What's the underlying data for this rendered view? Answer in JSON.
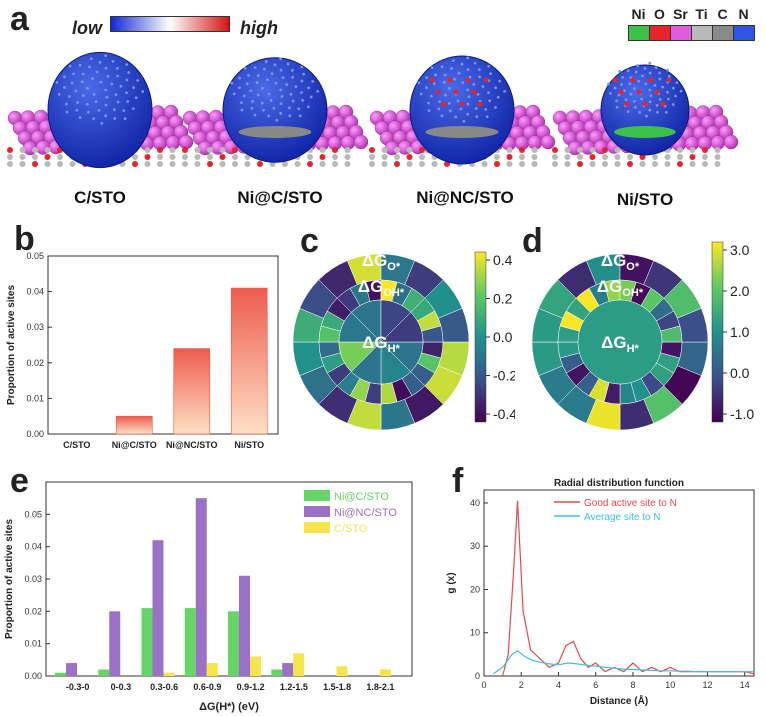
{
  "panels": {
    "a": "a",
    "b": "b",
    "c": "c",
    "d": "d",
    "e": "e",
    "f": "f"
  },
  "colorbar_a": {
    "low": "low",
    "high": "high"
  },
  "element_legend": [
    {
      "sym": "Ni",
      "color": "#3cc24a"
    },
    {
      "sym": "O",
      "color": "#e8232a"
    },
    {
      "sym": "Sr",
      "color": "#e05be0"
    },
    {
      "sym": "Ti",
      "color": "#b9b9b9"
    },
    {
      "sym": "C",
      "color": "#8a8a8a"
    },
    {
      "sym": "N",
      "color": "#2f56e0"
    }
  ],
  "structures": [
    {
      "label": "C/STO"
    },
    {
      "label": "Ni@C/STO"
    },
    {
      "label": "Ni@NC/STO"
    },
    {
      "label": "Ni/STO"
    }
  ],
  "rings_c": {
    "outer": "ΔG",
    "outer_sub": "O*",
    "middle": "ΔG",
    "middle_sub": "OH*",
    "inner": "ΔG",
    "inner_sub": "H*",
    "ticks": [
      "0.4",
      "0.2",
      "0.0",
      "-0.2",
      "-0.4"
    ]
  },
  "rings_d": {
    "outer": "ΔG",
    "outer_sub": "O*",
    "middle": "ΔG",
    "middle_sub": "OH*",
    "inner": "ΔG",
    "inner_sub": "H*",
    "ticks": [
      "3.0",
      "2.0",
      "1.0",
      "0.0",
      "-1.0"
    ]
  },
  "chart_data": [
    {
      "id": "b",
      "type": "bar",
      "ylabel": "Proportion of active sites",
      "categories": [
        "C/STO",
        "Ni@C/STO",
        "Ni@NC/STO",
        "Ni/STO"
      ],
      "values": [
        0.0,
        0.005,
        0.024,
        0.041
      ],
      "ylim": [
        0,
        0.05
      ],
      "yticks": [
        "0.00",
        "0.01",
        "0.02",
        "0.03",
        "0.04",
        "0.05"
      ]
    },
    {
      "id": "e",
      "type": "bar",
      "xlabel": "ΔG(H*) (eV)",
      "ylabel": "Proportion of active sites",
      "categories": [
        "-0.3-0",
        "0-0.3",
        "0.3-0.6",
        "0.6-0.9",
        "0.9-1.2",
        "1.2-1.5",
        "1.5-1.8",
        "1.8-2.1"
      ],
      "ylim": [
        0,
        0.06
      ],
      "yticks": [
        "0.00",
        "0.01",
        "0.02",
        "0.03",
        "0.04",
        "0.05"
      ],
      "series": [
        {
          "name": "Ni@C/STO",
          "color": "#66d466",
          "values": [
            0.001,
            0.002,
            0.021,
            0.021,
            0.02,
            0.002,
            0,
            0
          ]
        },
        {
          "name": "Ni@NC/STO",
          "color": "#9b70c7",
          "values": [
            0.004,
            0.02,
            0.042,
            0.055,
            0.031,
            0.004,
            0,
            0
          ]
        },
        {
          "name": "C/STO",
          "color": "#f6e44c",
          "values": [
            0,
            0,
            0.001,
            0.004,
            0.006,
            0.007,
            0.003,
            0.002
          ]
        }
      ]
    },
    {
      "id": "f",
      "type": "line",
      "title": "Radial distribution function",
      "xlabel": "Distance (Å)",
      "ylabel": "g (x)",
      "xlim": [
        0,
        14.5
      ],
      "ylim": [
        0,
        43
      ],
      "xticks": [
        "0",
        "2",
        "4",
        "6",
        "8",
        "10",
        "12",
        "14"
      ],
      "yticks": [
        "0",
        "10",
        "20",
        "30",
        "40"
      ],
      "series": [
        {
          "name": "Good active site to N",
          "color": "#e8484a",
          "x": [
            1.0,
            1.3,
            1.6,
            1.8,
            2.1,
            2.5,
            3.0,
            3.5,
            4.0,
            4.4,
            4.8,
            5.2,
            5.6,
            6.0,
            6.5,
            7.0,
            7.5,
            8.0,
            8.5,
            9.0,
            9.5,
            10.0,
            10.5,
            11.0,
            11.5,
            12.0,
            12.5,
            13.0,
            13.5,
            14.0,
            14.5
          ],
          "y": [
            0,
            5,
            25,
            40.5,
            15,
            6,
            4,
            2,
            3,
            7,
            8,
            4,
            2,
            3,
            1,
            2,
            1,
            3,
            1,
            2,
            1,
            2,
            1,
            1,
            1,
            1,
            1,
            1,
            1,
            1,
            0.5
          ]
        },
        {
          "name": "Average site to N",
          "color": "#3cc3dc",
          "x": [
            0.5,
            1.0,
            1.5,
            1.8,
            2.2,
            2.6,
            3.0,
            3.5,
            4.0,
            4.5,
            5.0,
            5.5,
            6.0,
            6.5,
            7.0,
            7.5,
            8.0,
            8.5,
            9.0,
            9.5,
            10.0,
            10.5,
            11.0,
            11.5,
            12.0,
            12.5,
            13.0,
            13.5,
            14.0,
            14.5
          ],
          "y": [
            0.5,
            2,
            5,
            5.8,
            4.5,
            3.6,
            3.2,
            2.8,
            2.6,
            3.0,
            2.8,
            2.5,
            2.3,
            2.0,
            1.8,
            1.6,
            1.5,
            1.4,
            1.3,
            1.2,
            1.2,
            1.1,
            1.1,
            1.0,
            1.0,
            1.0,
            1.0,
            1.0,
            1.0,
            1.0
          ]
        }
      ]
    }
  ]
}
